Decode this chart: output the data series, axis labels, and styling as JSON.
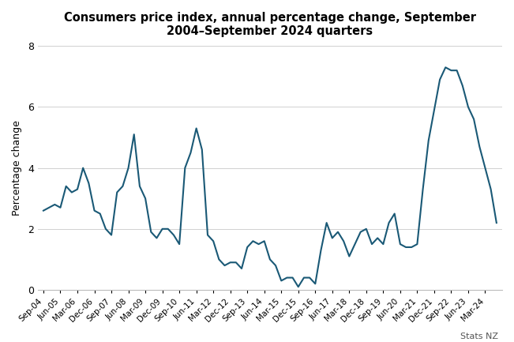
{
  "title": "Consumers price index, annual percentage change, September\n2004–September 2024 quarters",
  "ylabel": "Percentage change",
  "watermark": "Stats NZ",
  "line_color": "#1a5976",
  "line_width": 1.5,
  "background_color": "#ffffff",
  "plot_background": "#ffffff",
  "grid_color": "#d0d0d0",
  "ylim": [
    0,
    8
  ],
  "yticks": [
    0,
    2,
    4,
    6,
    8
  ],
  "x_labels": [
    "Sep-04",
    "Jun-05",
    "Mar-06",
    "Dec-06",
    "Sep-07",
    "Jun-08",
    "Mar-09",
    "Dec-09",
    "Sep-10",
    "Jun-11",
    "Mar-12",
    "Dec-12",
    "Sep-13",
    "Jun-14",
    "Mar-15",
    "Dec-15",
    "Sep-16",
    "Jun-17",
    "Mar-18",
    "Dec-18",
    "Sep-19",
    "Jun-20",
    "Mar-21",
    "Dec-21",
    "Sep-22",
    "Jun-23",
    "Mar-24"
  ],
  "x_label_indices": [
    0,
    3,
    6,
    9,
    12,
    15,
    18,
    21,
    24,
    27,
    30,
    33,
    36,
    39,
    42,
    45,
    48,
    51,
    54,
    57,
    60,
    63,
    66,
    69,
    72,
    75,
    78
  ],
  "data": {
    "labels": [
      "Sep-04",
      "Dec-04",
      "Mar-05",
      "Jun-05",
      "Sep-05",
      "Dec-05",
      "Mar-06",
      "Jun-06",
      "Sep-06",
      "Dec-06",
      "Mar-07",
      "Jun-07",
      "Sep-07",
      "Dec-07",
      "Mar-08",
      "Jun-08",
      "Sep-08",
      "Dec-08",
      "Mar-09",
      "Jun-09",
      "Sep-09",
      "Dec-09",
      "Mar-10",
      "Jun-10",
      "Sep-10",
      "Dec-10",
      "Mar-11",
      "Jun-11",
      "Sep-11",
      "Dec-11",
      "Mar-12",
      "Jun-12",
      "Sep-12",
      "Dec-12",
      "Mar-13",
      "Jun-13",
      "Sep-13",
      "Dec-13",
      "Mar-14",
      "Jun-14",
      "Sep-14",
      "Dec-14",
      "Mar-15",
      "Jun-15",
      "Sep-15",
      "Dec-15",
      "Mar-16",
      "Jun-16",
      "Sep-16",
      "Dec-16",
      "Mar-17",
      "Jun-17",
      "Sep-17",
      "Dec-17",
      "Mar-18",
      "Jun-18",
      "Sep-18",
      "Dec-18",
      "Mar-19",
      "Jun-19",
      "Sep-19",
      "Dec-19",
      "Mar-20",
      "Jun-20",
      "Sep-20",
      "Dec-20",
      "Mar-21",
      "Jun-21",
      "Sep-21",
      "Dec-21",
      "Mar-22",
      "Jun-22",
      "Sep-22",
      "Dec-22",
      "Mar-23",
      "Jun-23",
      "Sep-23",
      "Dec-23",
      "Mar-24",
      "Jun-24",
      "Sep-24"
    ],
    "values": [
      2.6,
      2.7,
      2.8,
      2.7,
      3.4,
      3.2,
      3.3,
      4.0,
      3.5,
      2.6,
      2.5,
      2.0,
      1.8,
      3.2,
      3.4,
      4.0,
      5.1,
      3.4,
      3.0,
      1.9,
      1.7,
      2.0,
      2.0,
      1.8,
      1.5,
      4.0,
      4.5,
      5.3,
      4.6,
      1.8,
      1.6,
      1.0,
      0.8,
      0.9,
      0.9,
      0.7,
      1.4,
      1.6,
      1.5,
      1.6,
      1.0,
      0.8,
      0.3,
      0.4,
      0.4,
      0.1,
      0.4,
      0.4,
      0.2,
      1.3,
      2.2,
      1.7,
      1.9,
      1.6,
      1.1,
      1.5,
      1.9,
      2.0,
      1.5,
      1.7,
      1.5,
      2.2,
      2.5,
      1.5,
      1.4,
      1.4,
      1.5,
      3.3,
      4.9,
      5.9,
      6.9,
      7.3,
      7.2,
      7.2,
      6.7,
      6.0,
      5.6,
      4.7,
      4.0,
      3.3,
      2.2
    ]
  }
}
